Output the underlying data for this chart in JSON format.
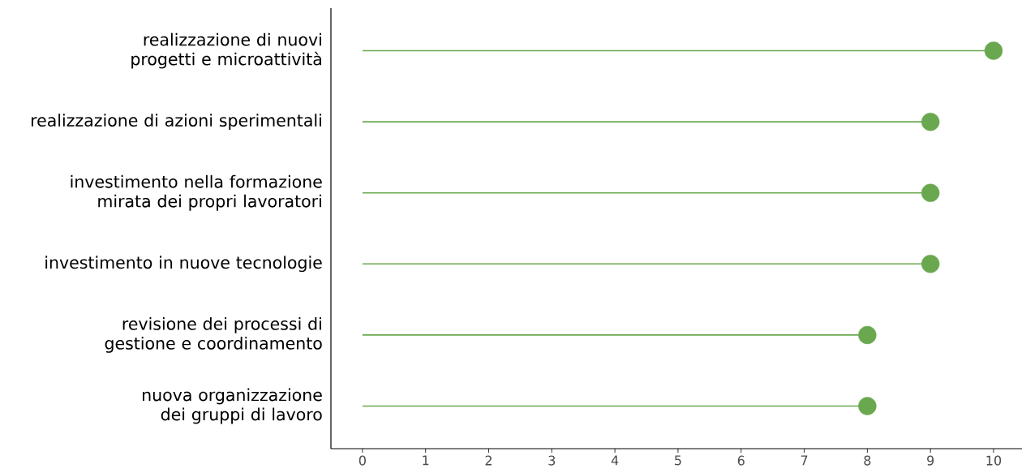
{
  "chart_data": {
    "type": "lollipop",
    "orientation": "horizontal",
    "categories": [
      "realizzazione di nuovi progetti e microattività",
      "realizzazione di azioni sperimentali",
      "investimento nella formazione mirata dei propri lavoratori",
      "investimento in nuove tecnologie",
      "revisione dei processi di gestione e coordinamento",
      "nuova organizzazione dei gruppi di lavoro"
    ],
    "values": [
      10,
      9,
      9,
      9,
      8,
      8
    ],
    "color": "#6aa84f",
    "xlim": [
      -0.5,
      10.45
    ],
    "xticks": [
      0,
      1,
      2,
      3,
      4,
      5,
      6,
      7,
      8,
      9,
      10
    ],
    "marker": "circle"
  }
}
